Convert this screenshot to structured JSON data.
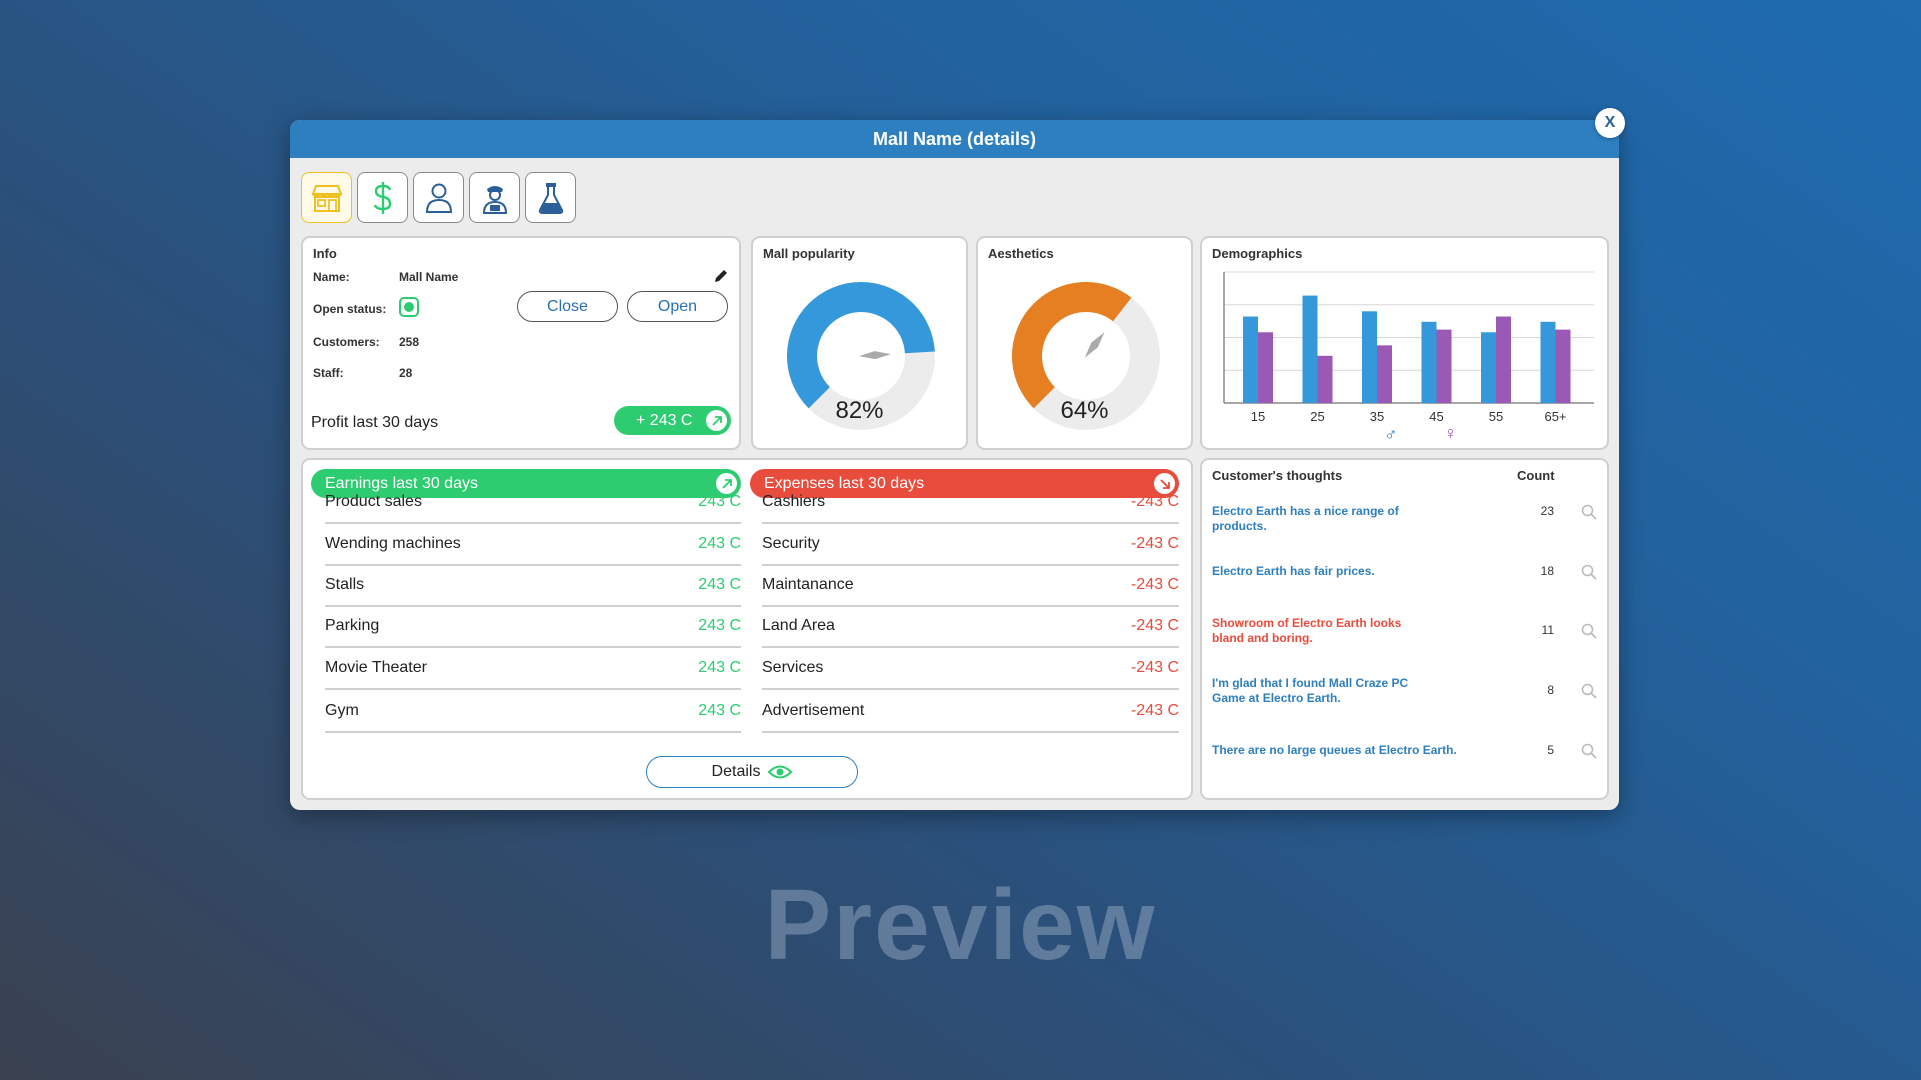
{
  "window": {
    "title": "Mall Name (details)",
    "close_label": "X"
  },
  "tabs": [
    {
      "icon": "store-icon",
      "active": true
    },
    {
      "icon": "dollar-icon",
      "active": false
    },
    {
      "icon": "person-icon",
      "active": false
    },
    {
      "icon": "staff-icon",
      "active": false
    },
    {
      "icon": "flask-icon",
      "active": false
    }
  ],
  "info": {
    "title": "Info",
    "name_label": "Name:",
    "name_value": "Mall Name",
    "status_label": "Open status:",
    "customers_label": "Customers:",
    "customers_value": "258",
    "staff_label": "Staff:",
    "staff_value": "28",
    "close_button": "Close",
    "open_button": "Open",
    "profit_label": "Profit last 30 days",
    "profit_value": "+  243 C"
  },
  "popularity": {
    "title": "Mall popularity",
    "value": 0.82,
    "label": "82%",
    "color": "#3498db"
  },
  "aesthetics": {
    "title": "Aesthetics",
    "value": 0.64,
    "label": "64%",
    "color": "#e67e22"
  },
  "demographics": {
    "title": "Demographics",
    "male_symbol": "♂",
    "female_symbol": "♀",
    "chart_data": {
      "type": "bar",
      "categories": [
        "15",
        "25",
        "35",
        "45",
        "55",
        "65+"
      ],
      "series": [
        {
          "values": [
            3.3,
            4.1,
            3.5,
            3.1,
            2.7,
            3.1
          ],
          "color": "#3498db"
        },
        {
          "values": [
            2.7,
            1.8,
            2.2,
            2.8,
            3.3,
            2.8
          ],
          "color": "#9b59b6"
        }
      ],
      "ylim": [
        0,
        5
      ],
      "grid": true
    }
  },
  "earnings": {
    "title": "Earnings last 30 days",
    "color": "#2ecc71",
    "rows": [
      {
        "label": "Product sales",
        "value": "243 C"
      },
      {
        "label": "Wending machines",
        "value": "243 C"
      },
      {
        "label": "Stalls",
        "value": "243 C"
      },
      {
        "label": "Parking",
        "value": "243 C"
      },
      {
        "label": "Movie Theater",
        "value": "243 C"
      },
      {
        "label": "Gym",
        "value": "243 C"
      }
    ]
  },
  "expenses": {
    "title": "Expenses last 30 days",
    "color": "#e74c3c",
    "rows": [
      {
        "label": "Cashiers",
        "value": "-243 C"
      },
      {
        "label": "Security",
        "value": "-243 C"
      },
      {
        "label": "Maintanance",
        "value": "-243 C"
      },
      {
        "label": "Land Area",
        "value": "-243 C"
      },
      {
        "label": "Services",
        "value": "-243 C"
      },
      {
        "label": "Advertisement",
        "value": "-243 C"
      }
    ]
  },
  "details_button": "Details",
  "thoughts": {
    "title": "Customer's thoughts",
    "count_header": "Count",
    "rows": [
      {
        "text": "Electro Earth has a nice range of products.",
        "count": "23",
        "color": "#2e7fc0"
      },
      {
        "text": "Electro Earth has fair prices.",
        "count": "18",
        "color": "#2e7fc0"
      },
      {
        "text": "Showroom of Electro Earth looks bland and boring.",
        "count": "11",
        "color": "#e74c3c"
      },
      {
        "text": "I'm glad that I found Mall Craze PC Game at Electro Earth.",
        "count": "8",
        "color": "#2e7fc0"
      },
      {
        "text": "There are no large queues at Electro Earth.",
        "count": "5",
        "color": "#2e7fc0"
      }
    ]
  },
  "watermark": "Preview"
}
